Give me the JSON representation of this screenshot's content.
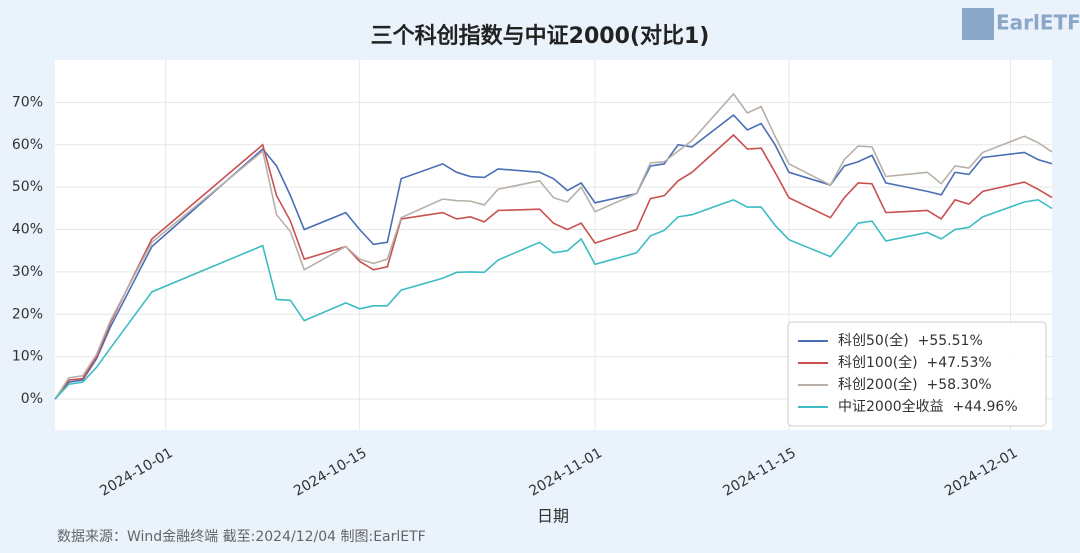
{
  "chart_data": {
    "type": "line",
    "title": "三个科创指数与中证2000(对比1)",
    "xlabel": "日期",
    "note": "数据来源：Wind金融终端 截至:2024/12/04 制图:EarlETF",
    "logo": "EarlETF",
    "x": [
      "2024-09-23",
      "2024-09-24",
      "2024-09-25",
      "2024-09-26",
      "2024-09-27",
      "2024-09-30",
      "2024-10-08",
      "2024-10-09",
      "2024-10-10",
      "2024-10-11",
      "2024-10-14",
      "2024-10-15",
      "2024-10-16",
      "2024-10-17",
      "2024-10-18",
      "2024-10-21",
      "2024-10-22",
      "2024-10-23",
      "2024-10-24",
      "2024-10-25",
      "2024-10-28",
      "2024-10-29",
      "2024-10-30",
      "2024-10-31",
      "2024-11-01",
      "2024-11-04",
      "2024-11-05",
      "2024-11-06",
      "2024-11-07",
      "2024-11-08",
      "2024-11-11",
      "2024-11-12",
      "2024-11-13",
      "2024-11-14",
      "2024-11-15",
      "2024-11-18",
      "2024-11-19",
      "2024-11-20",
      "2024-11-21",
      "2024-11-22",
      "2024-11-25",
      "2024-11-26",
      "2024-11-27",
      "2024-11-28",
      "2024-11-29",
      "2024-12-02",
      "2024-12-03",
      "2024-12-04"
    ],
    "series": [
      {
        "name": "科创50(全)  +55.51%",
        "color": "#4a6fb5",
        "values": [
          0,
          4,
          4.5,
          9.5,
          17,
          36,
          59,
          55,
          48,
          40,
          44,
          40,
          36.5,
          37,
          52,
          55.5,
          53.5,
          52.5,
          52.3,
          54.3,
          53.5,
          52,
          49.2,
          51,
          46.3,
          48.5,
          55,
          55.5,
          60,
          59.5,
          67,
          63.5,
          65,
          60,
          53.5,
          50.5,
          55,
          56,
          57.5,
          51,
          49,
          48.2,
          53.5,
          53,
          57,
          58.2,
          56.5,
          55.51
        ]
      },
      {
        "name": "科创100(全)  +47.53%",
        "color": "#c9504f",
        "values": [
          0,
          4.5,
          4.8,
          10,
          18,
          37.8,
          60,
          48,
          42,
          33,
          36,
          32.5,
          30.5,
          31.2,
          42.5,
          44,
          42.5,
          43,
          41.8,
          44.5,
          44.8,
          41.5,
          40,
          41.5,
          36.8,
          40,
          47.3,
          48,
          51.5,
          53.5,
          62.3,
          59,
          59.2,
          53.5,
          47.5,
          42.8,
          47.5,
          51,
          50.8,
          44,
          44.5,
          42.5,
          47,
          46,
          49,
          51.2,
          49.5,
          47.53
        ]
      },
      {
        "name": "科创200(全)  +58.30%",
        "color": "#b8b0a8",
        "values": [
          0,
          5,
          5.5,
          10.5,
          18.5,
          37,
          58.5,
          43.5,
          39.5,
          30.5,
          36,
          33,
          32,
          33,
          42.8,
          47.2,
          46.8,
          46.7,
          45.8,
          49.5,
          51.5,
          47.5,
          46.5,
          50,
          44.2,
          48.5,
          55.7,
          56,
          58.5,
          61,
          72,
          67.5,
          69,
          62,
          55.5,
          50.5,
          56.5,
          59.7,
          59.5,
          52.5,
          53.5,
          50.8,
          55,
          54.5,
          58.2,
          62,
          60.5,
          58.3
        ]
      },
      {
        "name": "中证2000全收益  +44.96%",
        "color": "#3dbcc4",
        "values": [
          0,
          3.5,
          4,
          7.5,
          12,
          25.3,
          36.2,
          23.5,
          23.3,
          18.5,
          22.7,
          21.3,
          22,
          22,
          25.7,
          28.5,
          29.9,
          30,
          29.9,
          32.8,
          37,
          34.5,
          35,
          37.8,
          31.8,
          34.5,
          38.5,
          39.8,
          43,
          43.5,
          47,
          45.3,
          45.3,
          41,
          37.6,
          33.6,
          37.5,
          41.5,
          42,
          37.3,
          39.3,
          37.8,
          40,
          40.5,
          43,
          46.5,
          47,
          44.96
        ]
      }
    ],
    "xlim": [
      "2024-09-23",
      "2024-12-04"
    ],
    "xticks": [
      "2024-10-01",
      "2024-10-15",
      "2024-11-01",
      "2024-11-15",
      "2024-12-01"
    ],
    "ylim": [
      -7.3,
      80
    ],
    "yticks": [
      {
        "value": 0,
        "label": "0%"
      },
      {
        "value": 10,
        "label": "10%"
      },
      {
        "value": 20,
        "label": "20%"
      },
      {
        "value": 30,
        "label": "30%"
      },
      {
        "value": 40,
        "label": "40%"
      },
      {
        "value": 50,
        "label": "50%"
      },
      {
        "value": 60,
        "label": "60%"
      },
      {
        "value": 70,
        "label": "70%"
      }
    ],
    "grid": true,
    "legend": "lower right"
  }
}
